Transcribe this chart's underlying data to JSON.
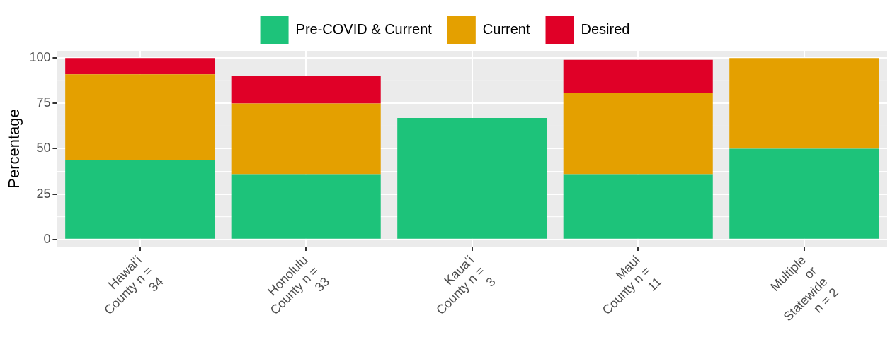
{
  "chart_data": {
    "type": "bar",
    "stacked": true,
    "ylabel": "Percentage",
    "categories": [
      "Hawaiʻi\nCounty n =\n34",
      "Honolulu\nCounty n =\n33",
      "Kauaʻi\nCounty n =\n3",
      "Maui\nCounty n =\n11",
      "Multiple\nor\nStatewide\nn = 2"
    ],
    "series": [
      {
        "name": "Pre-COVID & Current",
        "color": "#1dc37a",
        "values": [
          44,
          36,
          67,
          36,
          50
        ]
      },
      {
        "name": "Current",
        "color": "#e4a000",
        "values": [
          47,
          39,
          null,
          45,
          50
        ]
      },
      {
        "name": "Desired",
        "color": "#e00027",
        "values": [
          9,
          15,
          null,
          18,
          null
        ]
      }
    ],
    "ylim": [
      -4,
      104
    ],
    "yticks": [
      0,
      25,
      50,
      75,
      100
    ],
    "grid": true,
    "legend": "top"
  }
}
